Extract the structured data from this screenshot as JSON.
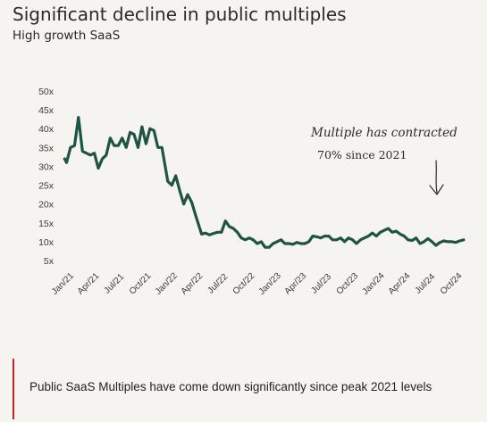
{
  "header": {
    "title": "Significant decline in public multiples",
    "subtitle": "High growth SaaS"
  },
  "annotation": {
    "line1": "Multiple has contracted",
    "line2": "70% since 2021"
  },
  "footer": {
    "text": "Public SaaS Multiples have come down significantly since peak 2021 levels"
  },
  "colors": {
    "line": "#1f5444",
    "accent": "#c8202a",
    "text": "#2b2b2b"
  },
  "chart_data": {
    "type": "line",
    "title": "Significant decline in public multiples",
    "subtitle": "High growth SaaS",
    "xlabel": "",
    "ylabel": "",
    "x_tick_labels": [
      "Jan/21",
      "Apr/21",
      "Jul/21",
      "Oct/21",
      "Jan/22",
      "Apr/22",
      "Jul/22",
      "Oct/22",
      "Jan/23",
      "Apr/23",
      "Jul/23",
      "Oct/23",
      "Jan/24",
      "Apr/24",
      "Jul/24",
      "Oct/24"
    ],
    "y_tick_labels": [
      "5x",
      "10x",
      "15x",
      "20x",
      "25x",
      "30x",
      "35x",
      "40x",
      "45x",
      "50x"
    ],
    "y_ticks": [
      5,
      10,
      15,
      20,
      25,
      30,
      35,
      40,
      45,
      50
    ],
    "ylim": [
      0,
      50
    ],
    "x_range": [
      "2020-12-28",
      "2024-12-16"
    ],
    "grid": false,
    "legend": "none",
    "series": [
      {
        "values": [
          [
            "2021-01-01",
            32
          ],
          [
            "2021-01-08",
            31
          ],
          [
            "2021-01-22",
            35
          ],
          [
            "2021-02-05",
            35.5
          ],
          [
            "2021-02-19",
            43
          ],
          [
            "2021-03-05",
            34
          ],
          [
            "2021-03-19",
            33.5
          ],
          [
            "2021-04-02",
            33
          ],
          [
            "2021-04-16",
            33.5
          ],
          [
            "2021-04-30",
            29.5
          ],
          [
            "2021-05-14",
            32
          ],
          [
            "2021-05-28",
            33
          ],
          [
            "2021-06-11",
            37.5
          ],
          [
            "2021-06-25",
            35.5
          ],
          [
            "2021-07-09",
            35.5
          ],
          [
            "2021-07-23",
            37.5
          ],
          [
            "2021-08-06",
            35
          ],
          [
            "2021-08-20",
            39
          ],
          [
            "2021-09-03",
            38.5
          ],
          [
            "2021-09-17",
            35
          ],
          [
            "2021-10-01",
            40.5
          ],
          [
            "2021-10-15",
            36
          ],
          [
            "2021-10-29",
            40
          ],
          [
            "2021-11-12",
            39.5
          ],
          [
            "2021-11-26",
            35
          ],
          [
            "2021-12-10",
            35
          ],
          [
            "2021-12-31",
            26
          ],
          [
            "2022-01-14",
            25
          ],
          [
            "2022-01-28",
            27.5
          ],
          [
            "2022-02-11",
            23.5
          ],
          [
            "2022-02-25",
            20
          ],
          [
            "2022-03-11",
            22.5
          ],
          [
            "2022-03-25",
            20.5
          ],
          [
            "2022-04-08",
            17
          ],
          [
            "2022-04-29",
            12
          ],
          [
            "2022-05-13",
            12.3
          ],
          [
            "2022-05-27",
            11.8
          ],
          [
            "2022-06-10",
            12.2
          ],
          [
            "2022-06-24",
            12.5
          ],
          [
            "2022-07-08",
            12.5
          ],
          [
            "2022-07-22",
            15.5
          ],
          [
            "2022-08-05",
            14
          ],
          [
            "2022-08-19",
            13.5
          ],
          [
            "2022-09-02",
            12.5
          ],
          [
            "2022-09-16",
            11
          ],
          [
            "2022-09-30",
            10.5
          ],
          [
            "2022-10-14",
            11
          ],
          [
            "2022-10-28",
            10.5
          ],
          [
            "2022-11-11",
            9.5
          ],
          [
            "2022-11-25",
            10
          ],
          [
            "2022-12-09",
            8.5
          ],
          [
            "2022-12-23",
            8.5
          ],
          [
            "2023-01-06",
            9.5
          ],
          [
            "2023-01-20",
            10
          ],
          [
            "2023-02-03",
            10.5
          ],
          [
            "2023-02-17",
            9.5
          ],
          [
            "2023-03-03",
            9.5
          ],
          [
            "2023-03-17",
            9.3
          ],
          [
            "2023-03-31",
            9.8
          ],
          [
            "2023-04-14",
            9.5
          ],
          [
            "2023-04-28",
            9.5
          ],
          [
            "2023-05-12",
            10
          ],
          [
            "2023-05-26",
            11.5
          ],
          [
            "2023-06-09",
            11.3
          ],
          [
            "2023-06-23",
            11
          ],
          [
            "2023-07-07",
            11.5
          ],
          [
            "2023-07-21",
            11.5
          ],
          [
            "2023-08-04",
            10.5
          ],
          [
            "2023-08-18",
            10.5
          ],
          [
            "2023-09-01",
            11
          ],
          [
            "2023-09-15",
            10
          ],
          [
            "2023-09-29",
            11
          ],
          [
            "2023-10-13",
            10.5
          ],
          [
            "2023-10-27",
            9.5
          ],
          [
            "2023-11-10",
            10.5
          ],
          [
            "2023-11-24",
            11
          ],
          [
            "2023-12-08",
            11.5
          ],
          [
            "2023-12-22",
            12.3
          ],
          [
            "2024-01-05",
            11.5
          ],
          [
            "2024-01-19",
            12.5
          ],
          [
            "2024-02-02",
            13
          ],
          [
            "2024-02-16",
            13.5
          ],
          [
            "2024-03-01",
            12.5
          ],
          [
            "2024-03-15",
            12.8
          ],
          [
            "2024-03-29",
            12
          ],
          [
            "2024-04-12",
            11.5
          ],
          [
            "2024-04-26",
            10.5
          ],
          [
            "2024-05-10",
            10.3
          ],
          [
            "2024-05-24",
            11
          ],
          [
            "2024-06-07",
            9.5
          ],
          [
            "2024-06-21",
            10
          ],
          [
            "2024-07-05",
            10.8
          ],
          [
            "2024-07-19",
            10
          ],
          [
            "2024-08-02",
            9
          ],
          [
            "2024-08-16",
            9.8
          ],
          [
            "2024-08-30",
            10.2
          ],
          [
            "2024-09-13",
            10
          ],
          [
            "2024-09-27",
            10
          ],
          [
            "2024-10-11",
            9.8
          ],
          [
            "2024-10-25",
            10.2
          ],
          [
            "2024-11-08",
            10.5
          ]
        ]
      }
    ]
  }
}
